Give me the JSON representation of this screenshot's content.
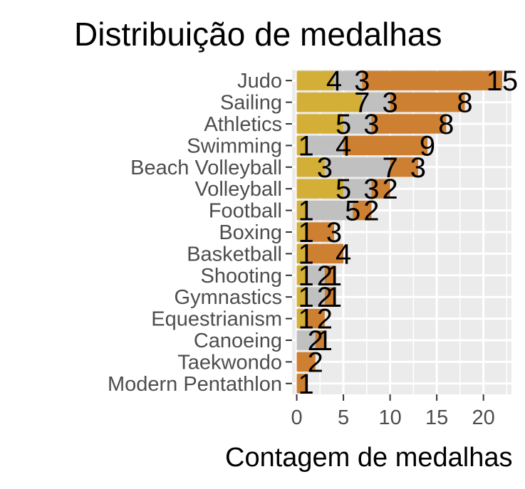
{
  "chart_data": {
    "type": "bar",
    "orientation": "horizontal",
    "stacked": true,
    "title": "Distribuição de medalhas",
    "xlabel": "Contagem de medalhas",
    "ylabel": "",
    "xlim": [
      -0.5,
      23
    ],
    "xticks": [
      0,
      5,
      10,
      15,
      20
    ],
    "grid": true,
    "legend": "none",
    "categories": [
      "Judo",
      "Sailing",
      "Athletics",
      "Swimming",
      "Beach Volleyball",
      "Volleyball",
      "Football",
      "Boxing",
      "Basketball",
      "Shooting",
      "Gymnastics",
      "Equestrianism",
      "Canoeing",
      "Taekwondo",
      "Modern Pentathlon"
    ],
    "series": [
      {
        "color": "#d4af37",
        "values": [
          4,
          7,
          5,
          1,
          3,
          5,
          1,
          1,
          1,
          1,
          1,
          1,
          0,
          0,
          0
        ]
      },
      {
        "color": "#c0c0c0",
        "values": [
          3,
          3,
          3,
          4,
          7,
          3,
          5,
          0,
          0,
          2,
          2,
          0,
          2,
          0,
          0
        ]
      },
      {
        "color": "#cd7f32",
        "values": [
          15,
          8,
          8,
          9,
          3,
          2,
          2,
          3,
          4,
          1,
          1,
          2,
          1,
          2,
          1
        ]
      }
    ]
  }
}
